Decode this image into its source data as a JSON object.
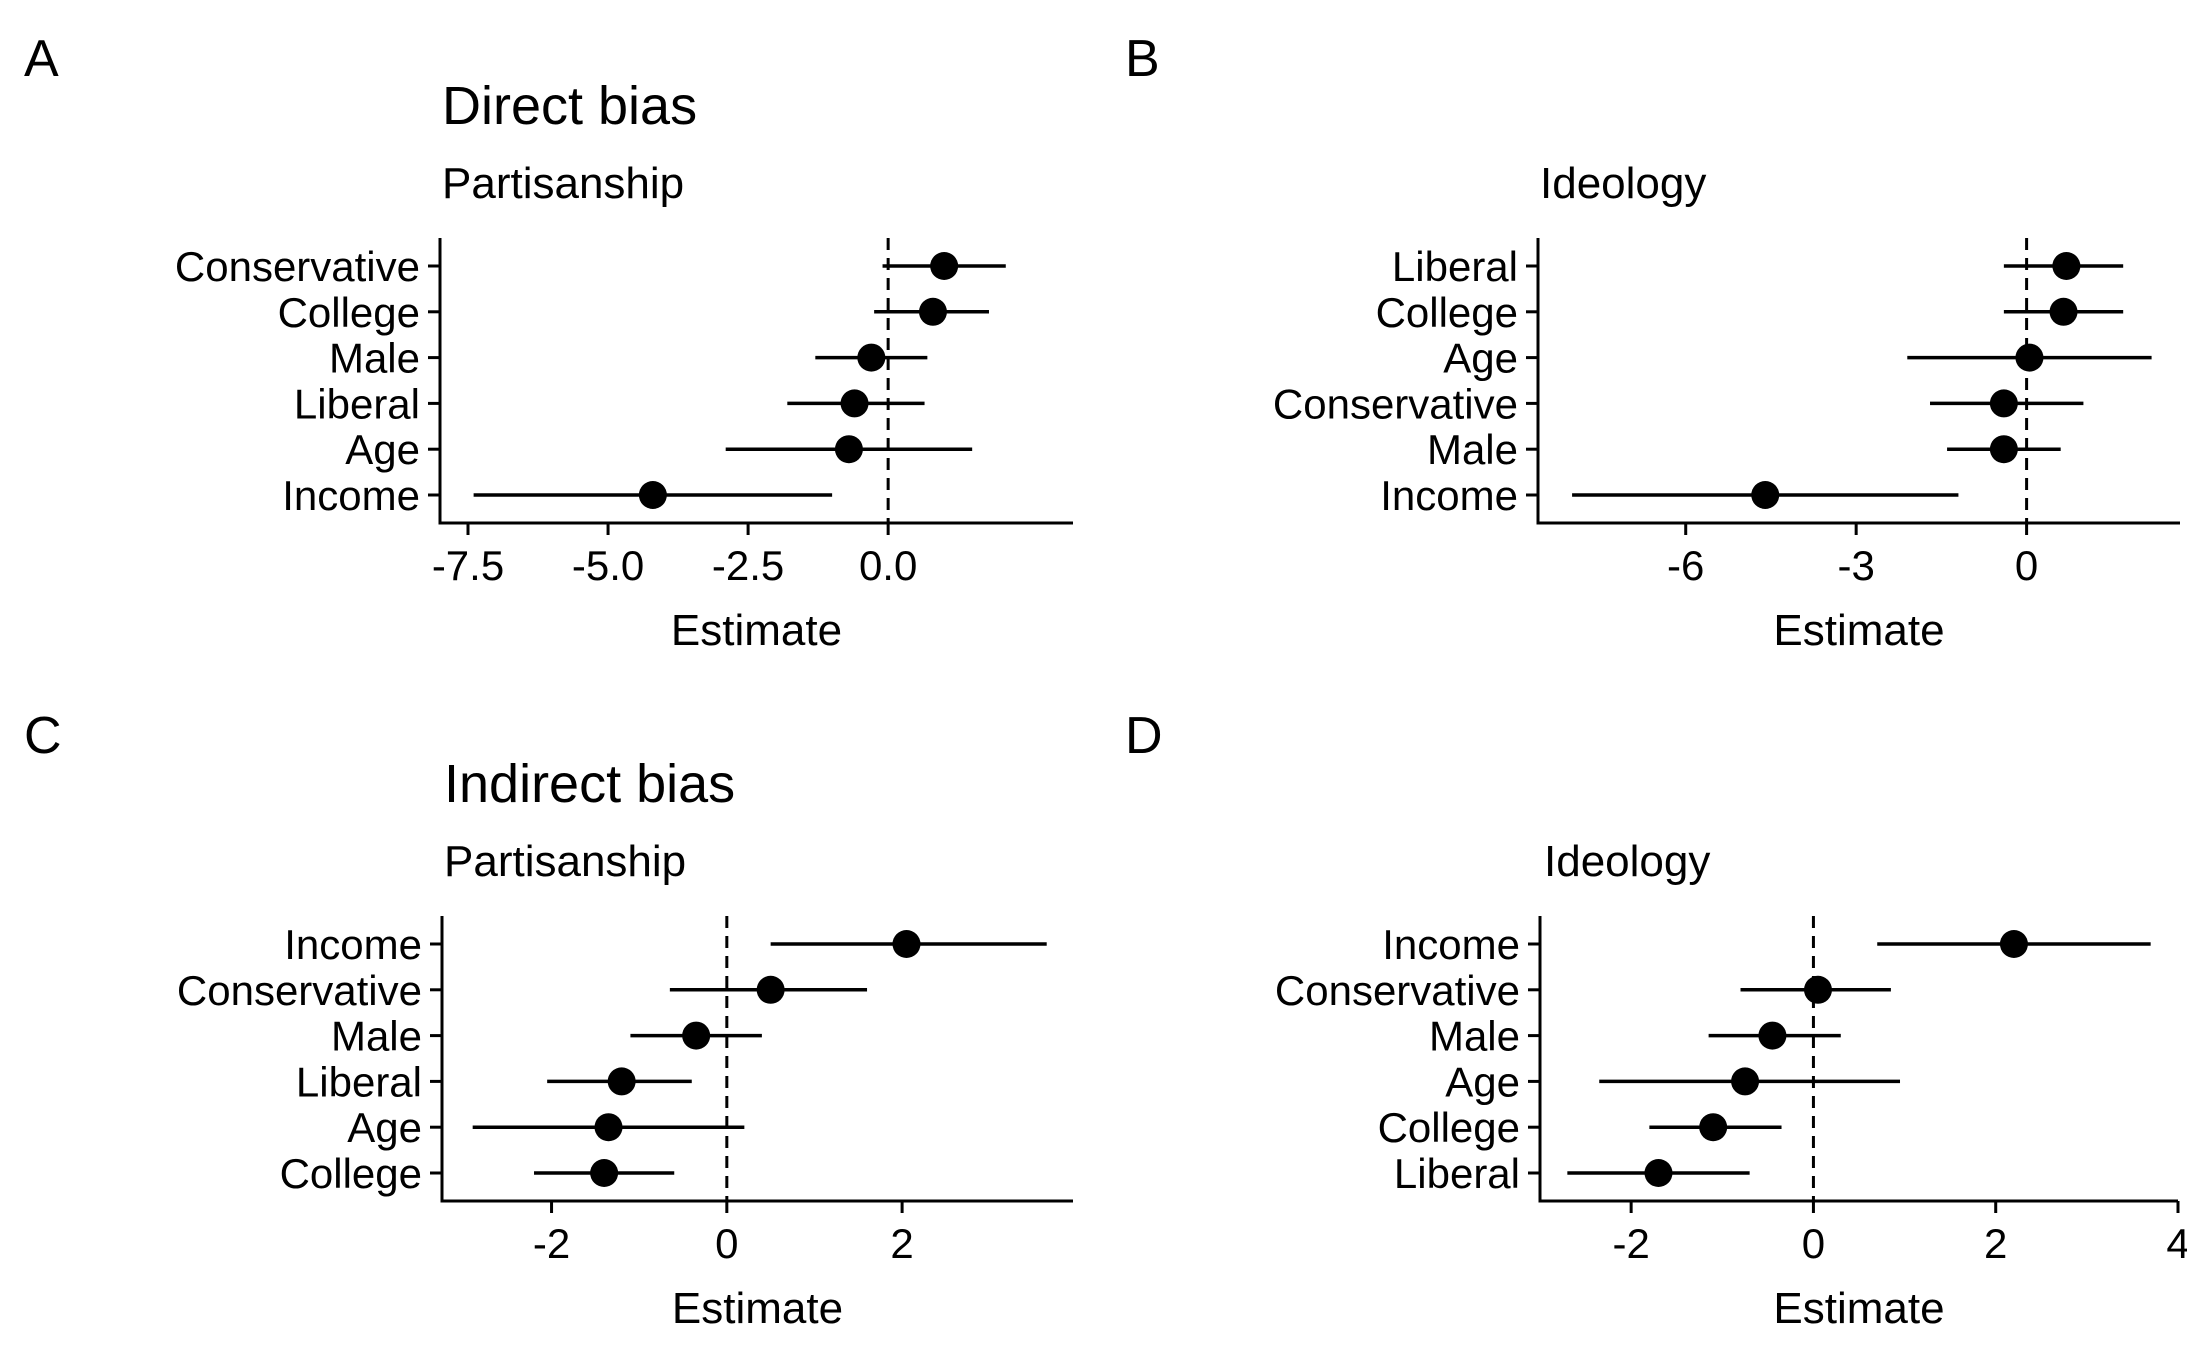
{
  "figure": {
    "panels": [
      {
        "letter": "A",
        "title": "Direct bias",
        "subtitle": "Partisanship"
      },
      {
        "letter": "B",
        "title": "",
        "subtitle": "Ideology"
      },
      {
        "letter": "C",
        "title": "Indirect bias",
        "subtitle": "Partisanship"
      },
      {
        "letter": "D",
        "title": "",
        "subtitle": "Ideology"
      }
    ]
  },
  "chart_data": [
    {
      "type": "scatter",
      "panel": "A",
      "title": "Direct bias",
      "subtitle": "Partisanship",
      "xlabel": "Estimate",
      "ylabel": "",
      "xlim": [
        -8.0,
        3.3
      ],
      "xticks": [
        -7.5,
        -5.0,
        -2.5,
        0.0
      ],
      "xtick_labels": [
        "-7.5",
        "-5.0",
        "-2.5",
        "0.0"
      ],
      "reference_line": 0,
      "grid": false,
      "categories": [
        "Conservative",
        "College",
        "Male",
        "Liberal",
        "Age",
        "Income"
      ],
      "estimates": [
        1.0,
        0.8,
        -0.3,
        -0.6,
        -0.7,
        -4.2
      ],
      "ci_low": [
        -0.1,
        -0.25,
        -1.3,
        -1.8,
        -2.9,
        -7.4
      ],
      "ci_high": [
        2.1,
        1.8,
        0.7,
        0.65,
        1.5,
        -1.0
      ]
    },
    {
      "type": "scatter",
      "panel": "B",
      "title": "",
      "subtitle": "Ideology",
      "xlabel": "Estimate",
      "ylabel": "",
      "xlim": [
        -8.6,
        2.7
      ],
      "xticks": [
        -6,
        -3,
        0
      ],
      "xtick_labels": [
        "-6",
        "-3",
        "0"
      ],
      "reference_line": 0,
      "grid": false,
      "categories": [
        "Liberal",
        "College",
        "Age",
        "Conservative",
        "Male",
        "Income"
      ],
      "estimates": [
        0.7,
        0.65,
        0.05,
        -0.4,
        -0.4,
        -4.6
      ],
      "ci_low": [
        -0.4,
        -0.4,
        -2.1,
        -1.7,
        -1.4,
        -8.0
      ],
      "ci_high": [
        1.7,
        1.7,
        2.2,
        1.0,
        0.6,
        -1.2
      ]
    },
    {
      "type": "scatter",
      "panel": "C",
      "title": "Indirect bias",
      "subtitle": "Partisanship",
      "xlabel": "Estimate",
      "ylabel": "",
      "xlim": [
        -3.25,
        3.95
      ],
      "xticks": [
        -2,
        0,
        2
      ],
      "xtick_labels": [
        "-2",
        "0",
        "2"
      ],
      "reference_line": 0,
      "grid": false,
      "categories": [
        "Income",
        "Conservative",
        "Male",
        "Liberal",
        "Age",
        "College"
      ],
      "estimates": [
        2.05,
        0.5,
        -0.35,
        -1.2,
        -1.35,
        -1.4
      ],
      "ci_low": [
        0.5,
        -0.65,
        -1.1,
        -2.05,
        -2.9,
        -2.2
      ],
      "ci_high": [
        3.65,
        1.6,
        0.4,
        -0.4,
        0.2,
        -0.6
      ]
    },
    {
      "type": "scatter",
      "panel": "D",
      "title": "",
      "subtitle": "Ideology",
      "xlabel": "Estimate",
      "ylabel": "",
      "xlim": [
        -3.0,
        4.0
      ],
      "xticks": [
        -2,
        0,
        2,
        4
      ],
      "xtick_labels": [
        "-2",
        "0",
        "2",
        "4"
      ],
      "reference_line": 0,
      "grid": false,
      "categories": [
        "Income",
        "Conservative",
        "Male",
        "Age",
        "College",
        "Liberal"
      ],
      "estimates": [
        2.2,
        0.05,
        -0.45,
        -0.75,
        -1.1,
        -1.7
      ],
      "ci_low": [
        0.7,
        -0.8,
        -1.15,
        -2.35,
        -1.8,
        -2.7
      ],
      "ci_high": [
        3.7,
        0.85,
        0.3,
        0.95,
        -0.35,
        -0.7
      ]
    }
  ]
}
